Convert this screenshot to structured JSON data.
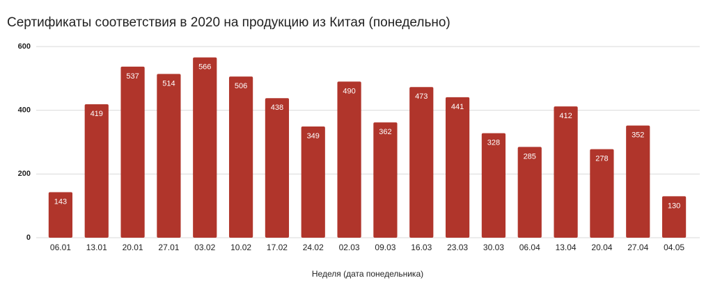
{
  "chart_data": {
    "type": "bar",
    "title": "Сертификаты соответствия в 2020 на продукцию из Китая (понедельно)",
    "x_label": "Неделя (дата понедельника)",
    "categories": [
      "06.01",
      "13.01",
      "20.01",
      "27.01",
      "03.02",
      "10.02",
      "17.02",
      "24.02",
      "02.03",
      "09.03",
      "16.03",
      "23.03",
      "30.03",
      "06.04",
      "13.04",
      "20.04",
      "27.04",
      "04.05"
    ],
    "values": [
      143,
      419,
      537,
      514,
      566,
      506,
      438,
      349,
      490,
      362,
      473,
      441,
      328,
      285,
      412,
      278,
      352,
      130
    ],
    "color": "#b0352b",
    "ylim": [
      0,
      600
    ],
    "yticks": [
      0,
      200,
      400,
      600
    ],
    "grid": true
  }
}
